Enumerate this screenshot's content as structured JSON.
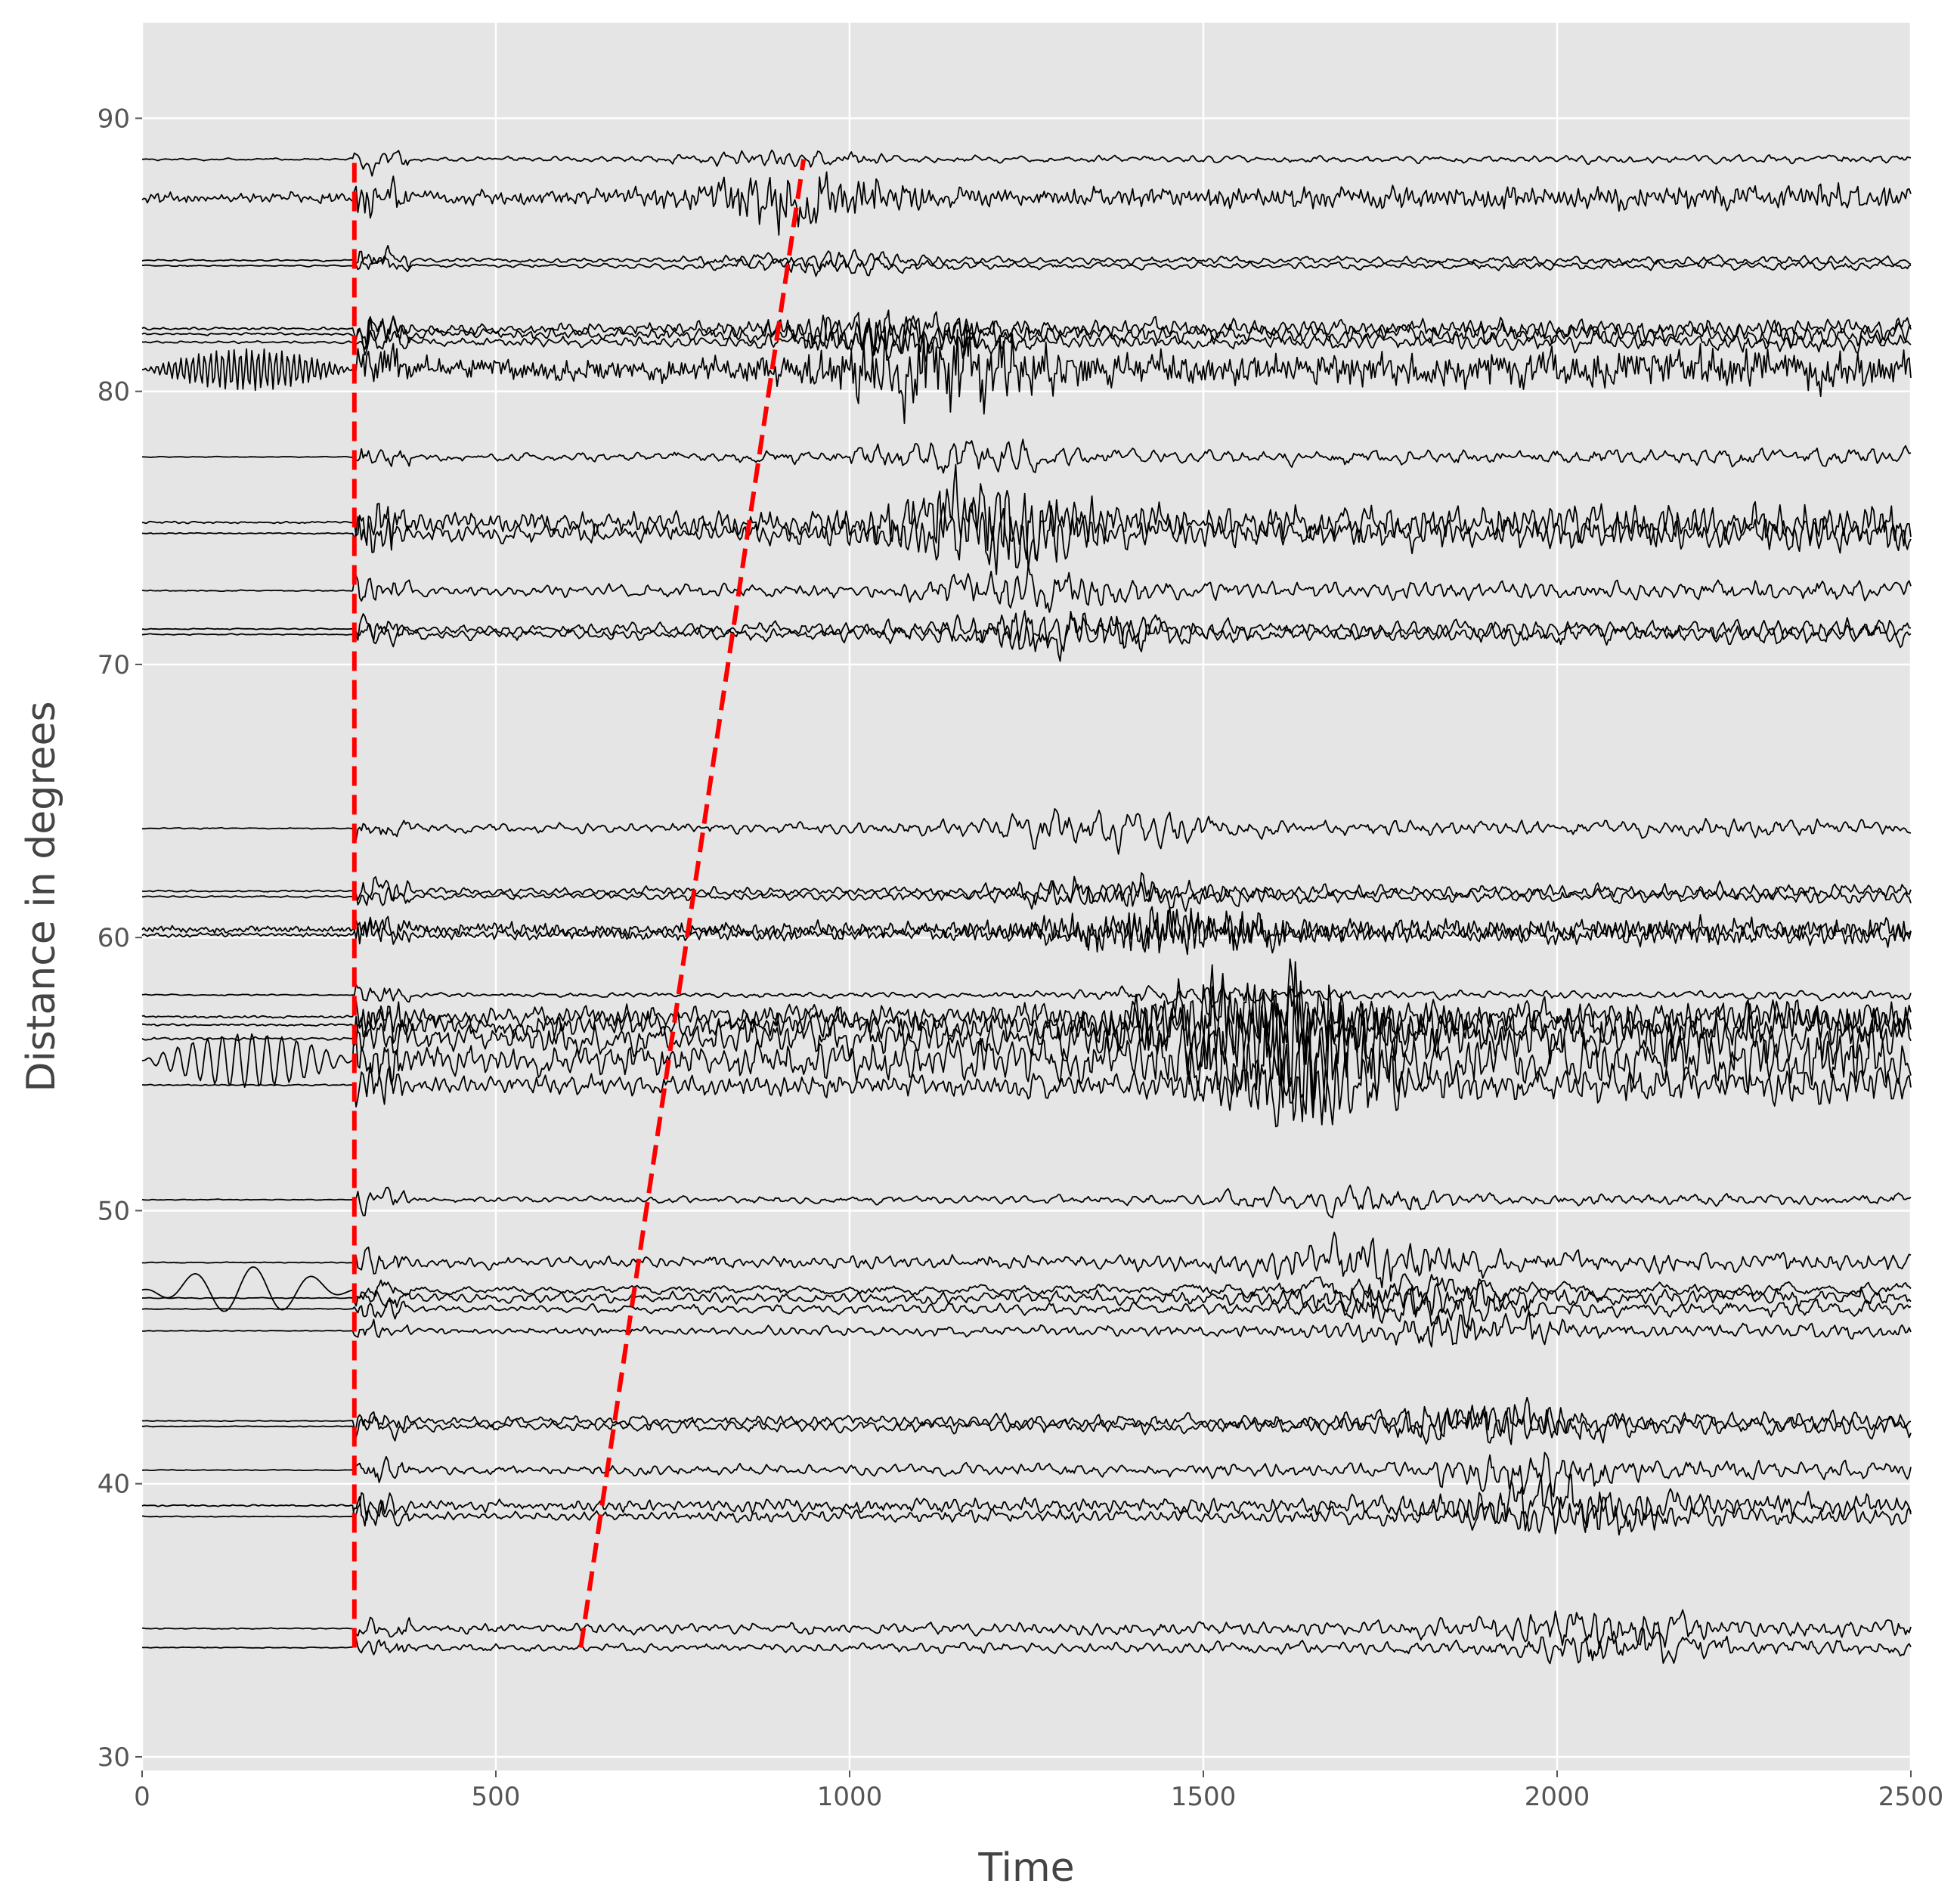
{
  "chart_data": {
    "type": "line",
    "title": "",
    "xlabel": "Time",
    "ylabel": "Distance in degrees",
    "xlim": [
      0,
      2500
    ],
    "ylim": [
      29.5,
      93.5
    ],
    "xticks": [
      0,
      500,
      1000,
      1500,
      2000,
      2500
    ],
    "yticks": [
      30,
      40,
      50,
      60,
      70,
      80,
      90
    ],
    "grid": true,
    "legend": "none",
    "colors": {
      "panel": "#e5e5e5",
      "grid": "#ffffff",
      "trace": "#000000",
      "marker": "#ff0000",
      "tick": "#555555"
    },
    "traces": [
      {
        "distance": 88.5,
        "onset": 300,
        "noise": 0.05,
        "burst": 0.7,
        "coda": 0.15,
        "period": 22
      },
      {
        "distance": 87.1,
        "onset": 300,
        "noise": 0.25,
        "burst": 0.8,
        "coda": 0.45,
        "period": 9
      },
      {
        "distance": 84.8,
        "onset": 300,
        "noise": 0.04,
        "burst": 0.6,
        "coda": 0.15,
        "period": 20
      },
      {
        "distance": 84.6,
        "onset": 300,
        "noise": 0.03,
        "burst": 0.5,
        "coda": 0.15,
        "period": 24
      },
      {
        "distance": 82.3,
        "onset": 300,
        "noise": 0.06,
        "burst": 0.9,
        "coda": 0.35,
        "period": 14
      },
      {
        "distance": 82.1,
        "onset": 300,
        "noise": 0.05,
        "burst": 0.8,
        "coda": 0.35,
        "period": 16
      },
      {
        "distance": 81.8,
        "onset": 300,
        "noise": 0.05,
        "burst": 0.7,
        "coda": 0.3,
        "period": 18
      },
      {
        "distance": 80.8,
        "onset": 300,
        "noise": 0.55,
        "burst": 0.9,
        "coda": 0.7,
        "period": 6
      },
      {
        "distance": 77.6,
        "onset": 300,
        "noise": 0.02,
        "burst": 0.6,
        "coda": 0.3,
        "period": 26
      },
      {
        "distance": 75.2,
        "onset": 300,
        "noise": 0.05,
        "burst": 0.9,
        "coda": 0.7,
        "period": 12
      },
      {
        "distance": 74.8,
        "onset": 300,
        "noise": 0.03,
        "burst": 0.8,
        "coda": 0.6,
        "period": 14
      },
      {
        "distance": 72.7,
        "onset": 300,
        "noise": 0.03,
        "burst": 0.6,
        "coda": 0.35,
        "period": 18
      },
      {
        "distance": 71.3,
        "onset": 300,
        "noise": 0.03,
        "burst": 0.6,
        "coda": 0.35,
        "period": 20
      },
      {
        "distance": 71.1,
        "onset": 300,
        "noise": 0.03,
        "burst": 0.5,
        "coda": 0.35,
        "period": 22
      },
      {
        "distance": 64.0,
        "onset": 300,
        "noise": 0.03,
        "burst": 0.4,
        "coda": 0.3,
        "period": 20
      },
      {
        "distance": 61.7,
        "onset": 300,
        "noise": 0.04,
        "burst": 0.6,
        "coda": 0.25,
        "period": 16
      },
      {
        "distance": 61.5,
        "onset": 300,
        "noise": 0.04,
        "burst": 0.5,
        "coda": 0.25,
        "period": 18
      },
      {
        "distance": 60.3,
        "onset": 300,
        "noise": 0.15,
        "burst": 0.6,
        "coda": 0.4,
        "period": 8
      },
      {
        "distance": 60.1,
        "onset": 300,
        "noise": 0.1,
        "burst": 0.5,
        "coda": 0.35,
        "period": 10
      },
      {
        "distance": 57.9,
        "onset": 300,
        "noise": 0.03,
        "burst": 0.6,
        "coda": 0.15,
        "period": 20
      },
      {
        "distance": 57.1,
        "onset": 300,
        "noise": 0.06,
        "burst": 0.8,
        "coda": 0.6,
        "period": 12
      },
      {
        "distance": 56.8,
        "onset": 300,
        "noise": 0.05,
        "burst": 0.9,
        "coda": 0.8,
        "period": 14
      },
      {
        "distance": 56.3,
        "onset": 300,
        "noise": 0.06,
        "burst": 0.9,
        "coda": 0.9,
        "period": 16
      },
      {
        "distance": 55.5,
        "onset": 300,
        "noise": 0.7,
        "burst": 1.0,
        "coda": 1.0,
        "period": 15
      },
      {
        "distance": 54.6,
        "onset": 300,
        "noise": 0.03,
        "burst": 0.8,
        "coda": 0.6,
        "period": 13
      },
      {
        "distance": 50.4,
        "onset": 300,
        "noise": 0.02,
        "burst": 0.5,
        "coda": 0.2,
        "period": 22
      },
      {
        "distance": 48.1,
        "onset": 300,
        "noise": 0.02,
        "burst": 0.6,
        "coda": 0.35,
        "period": 18
      },
      {
        "distance": 47.1,
        "onset": 300,
        "noise": 0.6,
        "burst": 0.5,
        "coda": 0.25,
        "period": 60
      },
      {
        "distance": 46.8,
        "onset": 300,
        "noise": 0.02,
        "burst": 0.5,
        "coda": 0.3,
        "period": 20
      },
      {
        "distance": 46.4,
        "onset": 300,
        "noise": 0.02,
        "burst": 0.5,
        "coda": 0.25,
        "period": 24
      },
      {
        "distance": 45.6,
        "onset": 300,
        "noise": 0.02,
        "burst": 0.4,
        "coda": 0.25,
        "period": 16
      },
      {
        "distance": 42.3,
        "onset": 300,
        "noise": 0.02,
        "burst": 0.6,
        "coda": 0.3,
        "period": 16
      },
      {
        "distance": 42.1,
        "onset": 300,
        "noise": 0.02,
        "burst": 0.5,
        "coda": 0.3,
        "period": 18
      },
      {
        "distance": 40.5,
        "onset": 300,
        "noise": 0.02,
        "burst": 0.6,
        "coda": 0.3,
        "period": 20
      },
      {
        "distance": 39.2,
        "onset": 300,
        "noise": 0.04,
        "burst": 0.7,
        "coda": 0.35,
        "period": 14
      },
      {
        "distance": 38.8,
        "onset": 300,
        "noise": 0.02,
        "burst": 0.6,
        "coda": 0.3,
        "period": 16
      },
      {
        "distance": 34.7,
        "onset": 300,
        "noise": 0.03,
        "burst": 0.5,
        "coda": 0.3,
        "period": 18
      },
      {
        "distance": 34.0,
        "onset": 300,
        "noise": 0.02,
        "burst": 0.5,
        "coda": 0.25,
        "period": 20
      }
    ],
    "annotations": [
      {
        "type": "dashed-line",
        "color": "#ff0000",
        "x": [
          300,
          300
        ],
        "y": [
          34.0,
          88.5
        ]
      },
      {
        "type": "dashed-line",
        "color": "#ff0000",
        "x": [
          620,
          935
        ],
        "y": [
          34.0,
          88.5
        ]
      }
    ]
  }
}
